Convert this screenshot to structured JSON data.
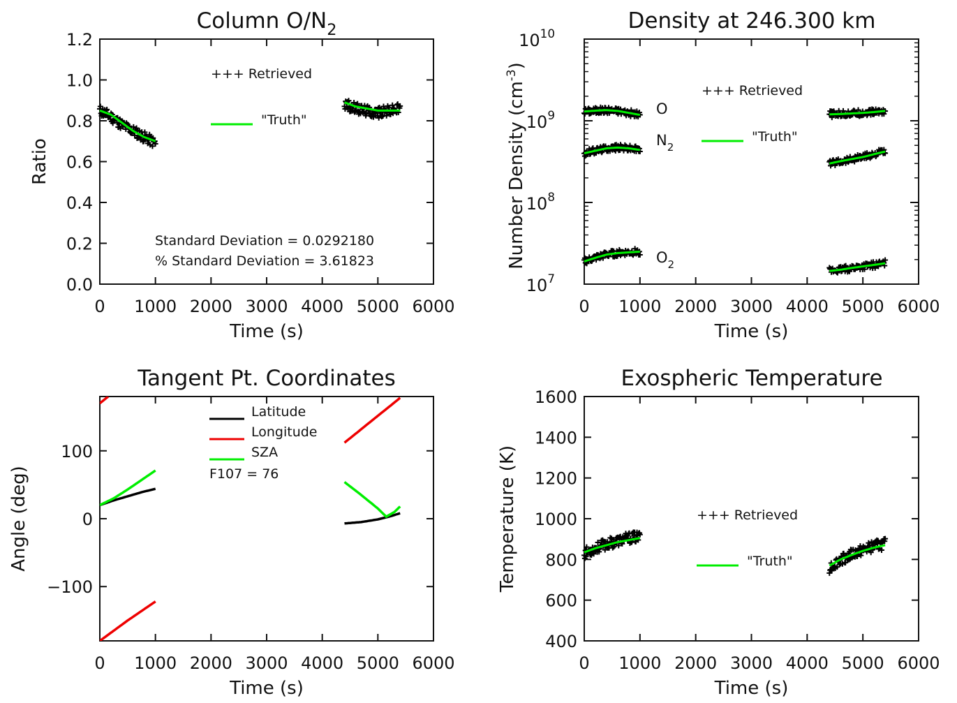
{
  "chart_data": [
    {
      "type": "scatter",
      "title": "Column O/N",
      "title_sub": "2",
      "xlabel": "Time (s)",
      "ylabel": "Ratio",
      "xlim": [
        0,
        6000
      ],
      "ylim": [
        0.0,
        1.2
      ],
      "xticks": [
        "0",
        "1000",
        "2000",
        "3000",
        "4000",
        "5000",
        "6000"
      ],
      "yticks": [
        "0.0",
        "0.2",
        "0.4",
        "0.6",
        "0.8",
        "1.0",
        "1.2"
      ],
      "legend": [
        {
          "label": "+++ Retrieved",
          "color": "#000000"
        },
        {
          "label": "\"Truth\"",
          "color": "#00ee00"
        }
      ],
      "annotations": [
        "Standard Deviation = 0.0292180",
        "% Standard Deviation = 3.61823"
      ],
      "series": [
        {
          "name": "Retrieved",
          "style": "scatter",
          "color": "#000000",
          "segments": [
            {
              "x": [
                0,
                200,
                400,
                600,
                800,
                1000
              ],
              "y": [
                0.85,
                0.82,
                0.78,
                0.75,
                0.72,
                0.69
              ]
            },
            {
              "x": [
                4400,
                4600,
                4800,
                5000,
                5200,
                5400
              ],
              "y": [
                0.88,
                0.86,
                0.85,
                0.84,
                0.85,
                0.86
              ]
            }
          ]
        },
        {
          "name": "Truth",
          "style": "line",
          "color": "#00ee00",
          "segments": [
            {
              "x": [
                0,
                200,
                400,
                600,
                800,
                1000
              ],
              "y": [
                0.85,
                0.83,
                0.79,
                0.75,
                0.72,
                0.7
              ]
            },
            {
              "x": [
                4400,
                4600,
                4800,
                5000,
                5200,
                5400
              ],
              "y": [
                0.89,
                0.87,
                0.86,
                0.85,
                0.85,
                0.85
              ]
            }
          ]
        }
      ]
    },
    {
      "type": "scatter",
      "title": "Density at 246.300 km",
      "xlabel": "Time (s)",
      "ylabel": "Number Density (cm",
      "ylabel_sup": "-3",
      "ylabel_close": ")",
      "yscale": "log",
      "xlim": [
        0,
        6000
      ],
      "ylim": [
        10000000,
        10000000000
      ],
      "xticks": [
        "0",
        "1000",
        "2000",
        "3000",
        "4000",
        "5000",
        "6000"
      ],
      "ytick_base": "10",
      "ytick_exponents": [
        "7",
        "8",
        "9",
        "10"
      ],
      "legend": [
        {
          "label": "+++ Retrieved",
          "color": "#000000"
        },
        {
          "label": "\"Truth\"",
          "color": "#00ee00"
        }
      ],
      "species": [
        {
          "label": "O",
          "sub": ""
        },
        {
          "label": "N",
          "sub": "2"
        },
        {
          "label": "O",
          "sub": "2"
        }
      ],
      "series": [
        {
          "name": "O",
          "segments": [
            {
              "x": [
                0,
                200,
                400,
                600,
                800,
                1000
              ],
              "y": [
                1300000000,
                1330000000,
                1350000000,
                1320000000,
                1250000000,
                1180000000
              ]
            },
            {
              "x": [
                4400,
                4600,
                4800,
                5000,
                5200,
                5400
              ],
              "y": [
                1200000000,
                1210000000,
                1230000000,
                1250000000,
                1280000000,
                1320000000
              ]
            }
          ]
        },
        {
          "name": "N2",
          "segments": [
            {
              "x": [
                0,
                200,
                400,
                600,
                800,
                1000
              ],
              "y": [
                400000000,
                430000000,
                460000000,
                470000000,
                460000000,
                440000000
              ]
            },
            {
              "x": [
                4400,
                4600,
                4800,
                5000,
                5200,
                5400
              ],
              "y": [
                300000000,
                320000000,
                340000000,
                360000000,
                390000000,
                420000000
              ]
            }
          ]
        },
        {
          "name": "O2",
          "segments": [
            {
              "x": [
                0,
                200,
                400,
                600,
                800,
                1000
              ],
              "y": [
                19000000,
                21000000,
                23000000,
                24000000,
                24500000,
                25000000
              ]
            },
            {
              "x": [
                4400,
                4600,
                4800,
                5000,
                5200,
                5400
              ],
              "y": [
                14500000,
                15000000,
                15800000,
                16500000,
                17200000,
                18000000
              ]
            }
          ]
        }
      ]
    },
    {
      "type": "line",
      "title": "Tangent Pt. Coordinates",
      "xlabel": "Time (s)",
      "ylabel": "Angle (deg)",
      "xlim": [
        0,
        6000
      ],
      "ylim": [
        -180,
        180
      ],
      "xticks": [
        "0",
        "1000",
        "2000",
        "3000",
        "4000",
        "5000",
        "6000"
      ],
      "yticks": [
        {
          "label": "−100",
          "v": -100
        },
        {
          "label": "0",
          "v": 0
        },
        {
          "label": "100",
          "v": 100
        }
      ],
      "legend": [
        {
          "label": "Latitude",
          "color": "#000000"
        },
        {
          "label": "Longitude",
          "color": "#ee0000"
        },
        {
          "label": "SZA",
          "color": "#00ee00"
        }
      ],
      "annotations": [
        "F107 = 76"
      ],
      "series": [
        {
          "name": "Latitude",
          "color": "#000000",
          "segments": [
            {
              "x": [
                0,
                250,
                500,
                750,
                1000
              ],
              "y": [
                20,
                27,
                33,
                39,
                44
              ]
            },
            {
              "x": [
                4400,
                4700,
                5000,
                5200,
                5400
              ],
              "y": [
                -7,
                -5,
                -1,
                3,
                8
              ]
            }
          ]
        },
        {
          "name": "Longitude",
          "color": "#ee0000",
          "segments": [
            {
              "x": [
                0,
                150
              ],
              "y": [
                170,
                180
              ]
            },
            {
              "x": [
                0,
                500,
                1000
              ],
              "y": [
                -180,
                -150,
                -122
              ]
            },
            {
              "x": [
                4400,
                4900,
                5400
              ],
              "y": [
                112,
                145,
                178
              ]
            }
          ]
        },
        {
          "name": "SZA",
          "color": "#00ee00",
          "segments": [
            {
              "x": [
                0,
                250,
                500,
                750,
                1000
              ],
              "y": [
                20,
                30,
                43,
                57,
                71
              ]
            },
            {
              "x": [
                4400,
                4700,
                5000,
                5150,
                5300,
                5400
              ],
              "y": [
                54,
                35,
                15,
                3,
                10,
                18
              ]
            }
          ]
        }
      ]
    },
    {
      "type": "scatter",
      "title": "Exospheric Temperature",
      "xlabel": "Time (s)",
      "ylabel": "Temperature (K)",
      "xlim": [
        0,
        6000
      ],
      "ylim": [
        400,
        1600
      ],
      "xticks": [
        "0",
        "1000",
        "2000",
        "3000",
        "4000",
        "5000",
        "6000"
      ],
      "yticks": [
        "400",
        "600",
        "800",
        "1000",
        "1200",
        "1400",
        "1600"
      ],
      "legend": [
        {
          "label": "+++ Retrieved",
          "color": "#000000"
        },
        {
          "label": "\"Truth\"",
          "color": "#00ee00"
        }
      ],
      "series": [
        {
          "name": "Retrieved",
          "style": "scatter",
          "color": "#000000",
          "segments": [
            {
              "x": [
                0,
                200,
                400,
                600,
                800,
                1000
              ],
              "y": [
                830,
                855,
                875,
                890,
                905,
                910
              ]
            },
            {
              "x": [
                4400,
                4600,
                4800,
                5000,
                5200,
                5400
              ],
              "y": [
                760,
                800,
                825,
                845,
                865,
                875
              ]
            }
          ]
        },
        {
          "name": "Truth",
          "style": "line",
          "color": "#00ee00",
          "segments": [
            {
              "x": [
                0,
                200,
                400,
                600,
                800,
                1000
              ],
              "y": [
                835,
                855,
                870,
                885,
                895,
                905
              ]
            },
            {
              "x": [
                4400,
                4600,
                4800,
                5000,
                5200,
                5400
              ],
              "y": [
                770,
                800,
                822,
                842,
                858,
                870
              ]
            }
          ]
        }
      ]
    }
  ]
}
